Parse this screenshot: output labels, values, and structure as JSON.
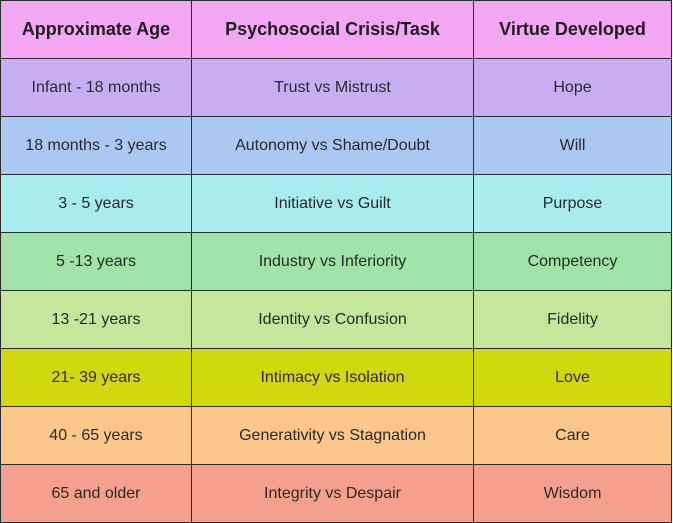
{
  "header": {
    "col1": "Approximate Age",
    "col2": "Psychosocial Crisis/Task",
    "col3": "Virtue Developed",
    "color": "#f3a6f4"
  },
  "rows": [
    {
      "age": "Infant - 18 months",
      "crisis": "Trust vs Mistrust",
      "virtue": "Hope",
      "color": "#c7aef2"
    },
    {
      "age": "18 months - 3 years",
      "crisis": "Autonomy vs Shame/Doubt",
      "virtue": "Will",
      "color": "#a9c8f2"
    },
    {
      "age": "3 - 5 years",
      "crisis": "Initiative vs Guilt",
      "virtue": "Purpose",
      "color": "#a8ecef"
    },
    {
      "age": "5 -13 years",
      "crisis": "Industry vs Inferiority",
      "virtue": "Competency",
      "color": "#9fe3a6"
    },
    {
      "age": "13 -21 years",
      "crisis": "Identity vs Confusion",
      "virtue": "Fidelity",
      "color": "#c4e79b"
    },
    {
      "age": "21- 39 years",
      "crisis": "Intimacy vs Isolation",
      "virtue": "Love",
      "color": "#d2d70f"
    },
    {
      "age": "40 - 65 years",
      "crisis": "Generativity vs Stagnation",
      "virtue": "Care",
      "color": "#fbc78a"
    },
    {
      "age": "65 and older",
      "crisis": "Integrity vs Despair",
      "virtue": "Wisdom",
      "color": "#f5a08e"
    }
  ]
}
